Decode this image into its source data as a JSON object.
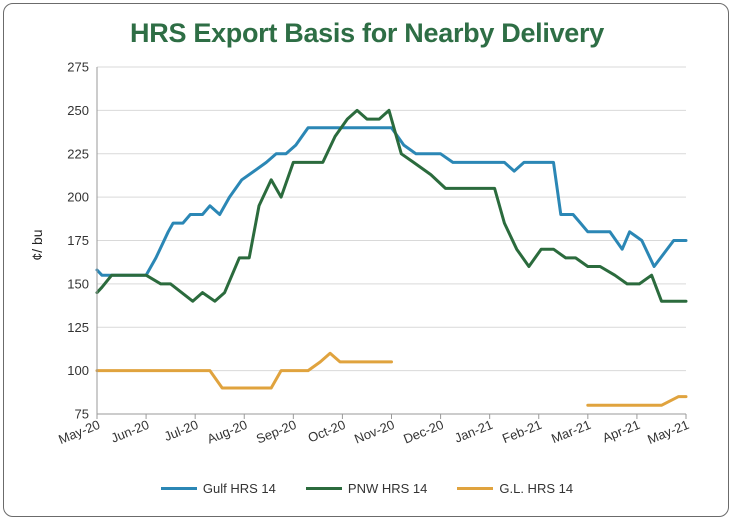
{
  "chart_data": {
    "type": "line",
    "title": "HRS Export Basis for Nearby Delivery",
    "ylabel": "¢/ bu",
    "xlabel": "",
    "ylim": [
      75,
      275
    ],
    "yticks": [
      75,
      100,
      125,
      150,
      175,
      200,
      225,
      250,
      275
    ],
    "x_tick_labels": [
      "May-20",
      "Jun-20",
      "Jul-20",
      "Aug-20",
      "Sep-20",
      "Oct-20",
      "Nov-20",
      "Dec-20",
      "Jan-21",
      "Feb-21",
      "Mar-21",
      "Apr-21",
      "May-21"
    ],
    "grid": "horizontal",
    "legend_position": "bottom",
    "series": [
      {
        "name": "Gulf HRS 14",
        "color": "#2b87b5",
        "points": [
          [
            0,
            158
          ],
          [
            0.1,
            155
          ],
          [
            1,
            155
          ],
          [
            1.2,
            165
          ],
          [
            1.45,
            180
          ],
          [
            1.55,
            185
          ],
          [
            1.75,
            185
          ],
          [
            1.9,
            190
          ],
          [
            2.15,
            190
          ],
          [
            2.3,
            195
          ],
          [
            2.5,
            190
          ],
          [
            2.7,
            200
          ],
          [
            2.95,
            210
          ],
          [
            3.2,
            215
          ],
          [
            3.45,
            220
          ],
          [
            3.65,
            225
          ],
          [
            3.85,
            225
          ],
          [
            4.05,
            230
          ],
          [
            4.3,
            240
          ],
          [
            5,
            240
          ],
          [
            5.5,
            240
          ],
          [
            6,
            240
          ],
          [
            6.25,
            230
          ],
          [
            6.5,
            225
          ],
          [
            7,
            225
          ],
          [
            7.25,
            220
          ],
          [
            8,
            220
          ],
          [
            8.3,
            220
          ],
          [
            8.5,
            215
          ],
          [
            8.7,
            220
          ],
          [
            9.3,
            220
          ],
          [
            9.45,
            190
          ],
          [
            9.7,
            190
          ],
          [
            9.85,
            185
          ],
          [
            10,
            180
          ],
          [
            10.45,
            180
          ],
          [
            10.7,
            170
          ],
          [
            10.85,
            180
          ],
          [
            11.1,
            175
          ],
          [
            11.35,
            160
          ],
          [
            11.75,
            175
          ],
          [
            12,
            175
          ]
        ]
      },
      {
        "name": "PNW HRS 14",
        "color": "#2b6b3d",
        "points": [
          [
            0,
            145
          ],
          [
            0.1,
            148
          ],
          [
            0.3,
            155
          ],
          [
            1,
            155
          ],
          [
            1.3,
            150
          ],
          [
            1.5,
            150
          ],
          [
            1.95,
            140
          ],
          [
            2.15,
            145
          ],
          [
            2.4,
            140
          ],
          [
            2.6,
            145
          ],
          [
            2.9,
            165
          ],
          [
            3.1,
            165
          ],
          [
            3.3,
            195
          ],
          [
            3.55,
            210
          ],
          [
            3.75,
            200
          ],
          [
            4,
            220
          ],
          [
            4.3,
            220
          ],
          [
            4.6,
            220
          ],
          [
            4.85,
            235
          ],
          [
            5.1,
            245
          ],
          [
            5.3,
            250
          ],
          [
            5.5,
            245
          ],
          [
            5.75,
            245
          ],
          [
            5.95,
            250
          ],
          [
            6.2,
            225
          ],
          [
            6.45,
            220
          ],
          [
            6.8,
            213
          ],
          [
            7.1,
            205
          ],
          [
            7.6,
            205
          ],
          [
            8.1,
            205
          ],
          [
            8.3,
            185
          ],
          [
            8.55,
            170
          ],
          [
            8.8,
            160
          ],
          [
            9.05,
            170
          ],
          [
            9.3,
            170
          ],
          [
            9.55,
            165
          ],
          [
            9.75,
            165
          ],
          [
            10,
            160
          ],
          [
            10.25,
            160
          ],
          [
            10.55,
            155
          ],
          [
            10.8,
            150
          ],
          [
            11.05,
            150
          ],
          [
            11.3,
            155
          ],
          [
            11.5,
            140
          ],
          [
            12,
            140
          ]
        ]
      },
      {
        "name": "G.L. HRS 14",
        "color": "#e0a33e",
        "segments": [
          [
            [
              0,
              100
            ],
            [
              0.5,
              100
            ],
            [
              1,
              100
            ],
            [
              2.3,
              100
            ],
            [
              2.55,
              90
            ],
            [
              3.55,
              90
            ],
            [
              3.75,
              100
            ],
            [
              4.3,
              100
            ],
            [
              4.55,
              105
            ],
            [
              4.75,
              110
            ],
            [
              4.95,
              105
            ],
            [
              5.5,
              105
            ],
            [
              6,
              105
            ]
          ],
          [
            [
              10,
              80
            ],
            [
              10.5,
              80
            ],
            [
              11.5,
              80
            ],
            [
              11.85,
              85
            ],
            [
              12,
              85
            ]
          ]
        ]
      }
    ]
  }
}
